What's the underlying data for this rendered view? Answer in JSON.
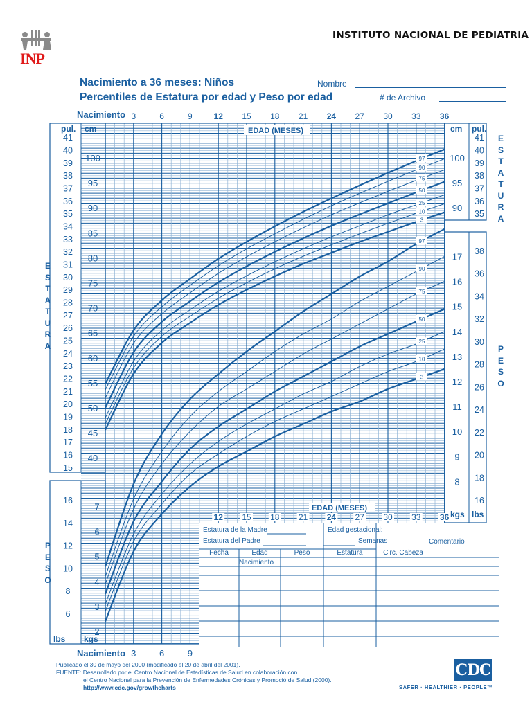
{
  "header": {
    "institution": "INSTITUTO NACIONAL DE PEDIATRIA",
    "logo_text": "INP",
    "logo_icon": "inp-children-icon",
    "title_line1": "Nacimiento a 36 meses:  Niños",
    "title_line2": "Percentiles de Estatura por edad y Peso por edad",
    "name_label": "Nombre",
    "file_label": "# de Archivo"
  },
  "axes": {
    "top_birth_label": "Nacimiento",
    "top_ticks": [
      "3",
      "6",
      "9",
      "12",
      "15",
      "18",
      "21",
      "24",
      "27",
      "30",
      "33",
      "36"
    ],
    "edad_label": "EDAD (MESES)",
    "bottom_birth_label": "Nacimiento",
    "bottom_ticks": [
      "3",
      "6",
      "9"
    ],
    "lower_edad_label": "EDAD (MESES)",
    "lower_ticks": [
      "12",
      "15",
      "18",
      "21",
      "24",
      "27",
      "30",
      "33",
      "36"
    ],
    "pul_label": "pul.",
    "cm_label": "cm",
    "lbs_label": "lbs",
    "kgs_label": "kgs",
    "side_estatura": "ESTATURA",
    "side_peso": "PESO"
  },
  "record_table": {
    "madre": "Estatura de la Madre",
    "padre": "Estatura del Padre",
    "gestacional": "Edad gestacional:",
    "semanas": "Semanas",
    "comentario": "Comentario",
    "columns": [
      "Fecha",
      "Edad",
      "Peso",
      "Estatura",
      "Circ. Cabeza"
    ],
    "first_row_edad": "Nacimiento"
  },
  "footer": {
    "published": "Publicado el 30 de mayo del 2000 (modificado el 20 de abril del 2001).",
    "source1": "FUENTE: Desarrollado por el Centro Nacional de Estadísticas de Salud en colaboración con",
    "source2": "el Centro Nacional para la Prevención de Enfermedades Crónicas y Promoció de Salud (2000).",
    "url": "http://www.cdc.gov/growthcharts",
    "cdc_logo": "CDC",
    "cdc_tagline": "SAFER · HEALTHIER · PEOPLE™"
  },
  "colors": {
    "primary": "#1a5fa0",
    "grid_light": "#8fb3d6",
    "logo_red": "#e01a1a",
    "logo_gray": "#8a8a8a"
  },
  "chart_data": [
    {
      "type": "line",
      "title": "Estatura por edad (Niños, Nacimiento a 36 meses)",
      "xlabel": "EDAD (MESES)",
      "ylabel": "ESTATURA (cm / pul.)",
      "x": [
        0,
        3,
        6,
        9,
        12,
        15,
        18,
        21,
        24,
        27,
        30,
        33,
        36
      ],
      "xlim": [
        0,
        36
      ],
      "ylim_cm": [
        40,
        104
      ],
      "ylim_in": [
        15,
        41
      ],
      "cm_ticks": [
        40,
        45,
        50,
        55,
        60,
        65,
        70,
        75,
        80,
        85,
        90,
        95,
        100
      ],
      "in_ticks": [
        15,
        16,
        17,
        18,
        19,
        20,
        21,
        22,
        23,
        24,
        25,
        26,
        27,
        28,
        29,
        30,
        31,
        32,
        33,
        34,
        35,
        36,
        37,
        38,
        39,
        40,
        41
      ],
      "series": [
        {
          "name": "97",
          "values": [
            54.8,
            65.5,
            71.5,
            75.8,
            79.8,
            83.2,
            86.3,
            89.2,
            91.9,
            94.5,
            97.0,
            99.4,
            101.7
          ]
        },
        {
          "name": "90",
          "values": [
            53.6,
            64.3,
            70.2,
            74.5,
            78.4,
            81.8,
            84.8,
            87.7,
            90.4,
            92.9,
            95.3,
            97.6,
            99.8
          ]
        },
        {
          "name": "75",
          "values": [
            52.0,
            62.9,
            68.8,
            73.0,
            76.9,
            80.2,
            83.2,
            86.0,
            88.6,
            91.0,
            93.3,
            95.5,
            97.6
          ]
        },
        {
          "name": "50",
          "values": [
            50.0,
            61.1,
            67.2,
            71.3,
            75.1,
            78.3,
            81.2,
            83.9,
            86.4,
            88.7,
            90.9,
            93.1,
            95.2
          ]
        },
        {
          "name": "25",
          "values": [
            48.0,
            59.3,
            65.5,
            69.6,
            73.3,
            76.4,
            79.2,
            81.8,
            84.2,
            86.4,
            88.6,
            90.6,
            92.6
          ]
        },
        {
          "name": "10",
          "values": [
            46.8,
            58.0,
            64.3,
            68.3,
            71.9,
            75.0,
            77.8,
            80.3,
            82.6,
            84.8,
            86.9,
            88.9,
            90.8
          ]
        },
        {
          "name": "3",
          "values": [
            45.6,
            56.8,
            63.0,
            67.0,
            70.6,
            73.6,
            76.3,
            78.8,
            81.0,
            83.2,
            85.2,
            87.2,
            89.1
          ]
        }
      ]
    },
    {
      "type": "line",
      "title": "Peso por edad (Niños, Nacimiento a 36 meses)",
      "xlabel": "EDAD (MESES)",
      "ylabel": "PESO (kgs / lbs)",
      "x": [
        0,
        3,
        6,
        9,
        12,
        15,
        18,
        21,
        24,
        27,
        30,
        33,
        36
      ],
      "xlim": [
        0,
        36
      ],
      "ylim_kg": [
        1.7,
        18.5
      ],
      "kg_ticks": [
        2,
        3,
        4,
        5,
        6,
        7,
        8,
        9,
        10,
        11,
        12,
        13,
        14,
        15,
        16,
        17
      ],
      "lb_ticks": [
        6,
        8,
        10,
        12,
        14,
        16,
        18,
        20,
        22,
        24,
        26,
        28,
        30,
        32,
        34,
        36,
        38
      ],
      "series": [
        {
          "name": "97",
          "values": [
            4.6,
            7.9,
            9.9,
            11.3,
            12.3,
            13.2,
            14.0,
            14.8,
            15.5,
            16.2,
            16.8,
            17.5,
            18.1
          ]
        },
        {
          "name": "90",
          "values": [
            4.2,
            7.3,
            9.2,
            10.6,
            11.6,
            12.4,
            13.2,
            13.9,
            14.5,
            15.2,
            15.8,
            16.4,
            17.0
          ]
        },
        {
          "name": "75",
          "values": [
            3.9,
            6.9,
            8.7,
            10.0,
            11.0,
            11.7,
            12.4,
            13.1,
            13.7,
            14.3,
            14.9,
            15.5,
            16.0
          ]
        },
        {
          "name": "50",
          "values": [
            3.5,
            6.4,
            8.0,
            9.3,
            10.2,
            10.9,
            11.6,
            12.2,
            12.8,
            13.4,
            13.9,
            14.4,
            14.9
          ]
        },
        {
          "name": "25",
          "values": [
            3.1,
            5.9,
            7.5,
            8.7,
            9.6,
            10.3,
            10.9,
            11.5,
            12.0,
            12.6,
            13.1,
            13.5,
            14.0
          ]
        },
        {
          "name": "10",
          "values": [
            2.8,
            5.6,
            7.1,
            8.3,
            9.1,
            9.8,
            10.4,
            10.9,
            11.4,
            11.9,
            12.4,
            12.8,
            13.3
          ]
        },
        {
          "name": "3",
          "values": [
            2.4,
            5.2,
            6.7,
            7.8,
            8.6,
            9.2,
            9.8,
            10.3,
            10.8,
            11.2,
            11.7,
            12.1,
            12.5
          ]
        }
      ]
    }
  ]
}
